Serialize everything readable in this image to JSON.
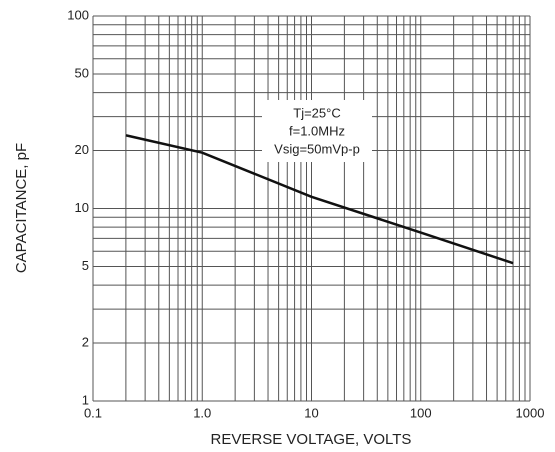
{
  "chart_data": {
    "type": "line",
    "x_label": "REVERSE VOLTAGE, VOLTS",
    "y_label": "CAPACITANCE, pF",
    "annotations": [
      "Tj=25°C",
      "f=1.0MHz",
      "Vsig=50mVp-p"
    ],
    "log_x": true,
    "log_y": true,
    "grid": true,
    "x": [
      0.2,
      1,
      10,
      100,
      700
    ],
    "series": [
      {
        "color": "#111111",
        "values": [
          24,
          19.5,
          11.5,
          7.5,
          5.2
        ]
      }
    ],
    "xlim": [
      0.1,
      1000
    ],
    "ylim": [
      1,
      100
    ],
    "xticks": [
      0.1,
      {
        "value": 1,
        "label": "1.0"
      },
      10,
      100,
      1000
    ],
    "yticks": [
      1,
      2,
      5,
      10,
      20,
      50,
      100
    ],
    "x_minor_grid": [
      0.2,
      0.3,
      0.4,
      0.5,
      0.6,
      0.7,
      0.8,
      0.9,
      2,
      3,
      4,
      5,
      6,
      7,
      8,
      9,
      20,
      30,
      40,
      50,
      60,
      70,
      80,
      90,
      200,
      300,
      400,
      500,
      600,
      700,
      800,
      900
    ],
    "y_minor_grid": [
      3,
      4,
      6,
      7,
      8,
      9,
      30,
      40,
      60,
      70,
      80,
      90
    ]
  }
}
